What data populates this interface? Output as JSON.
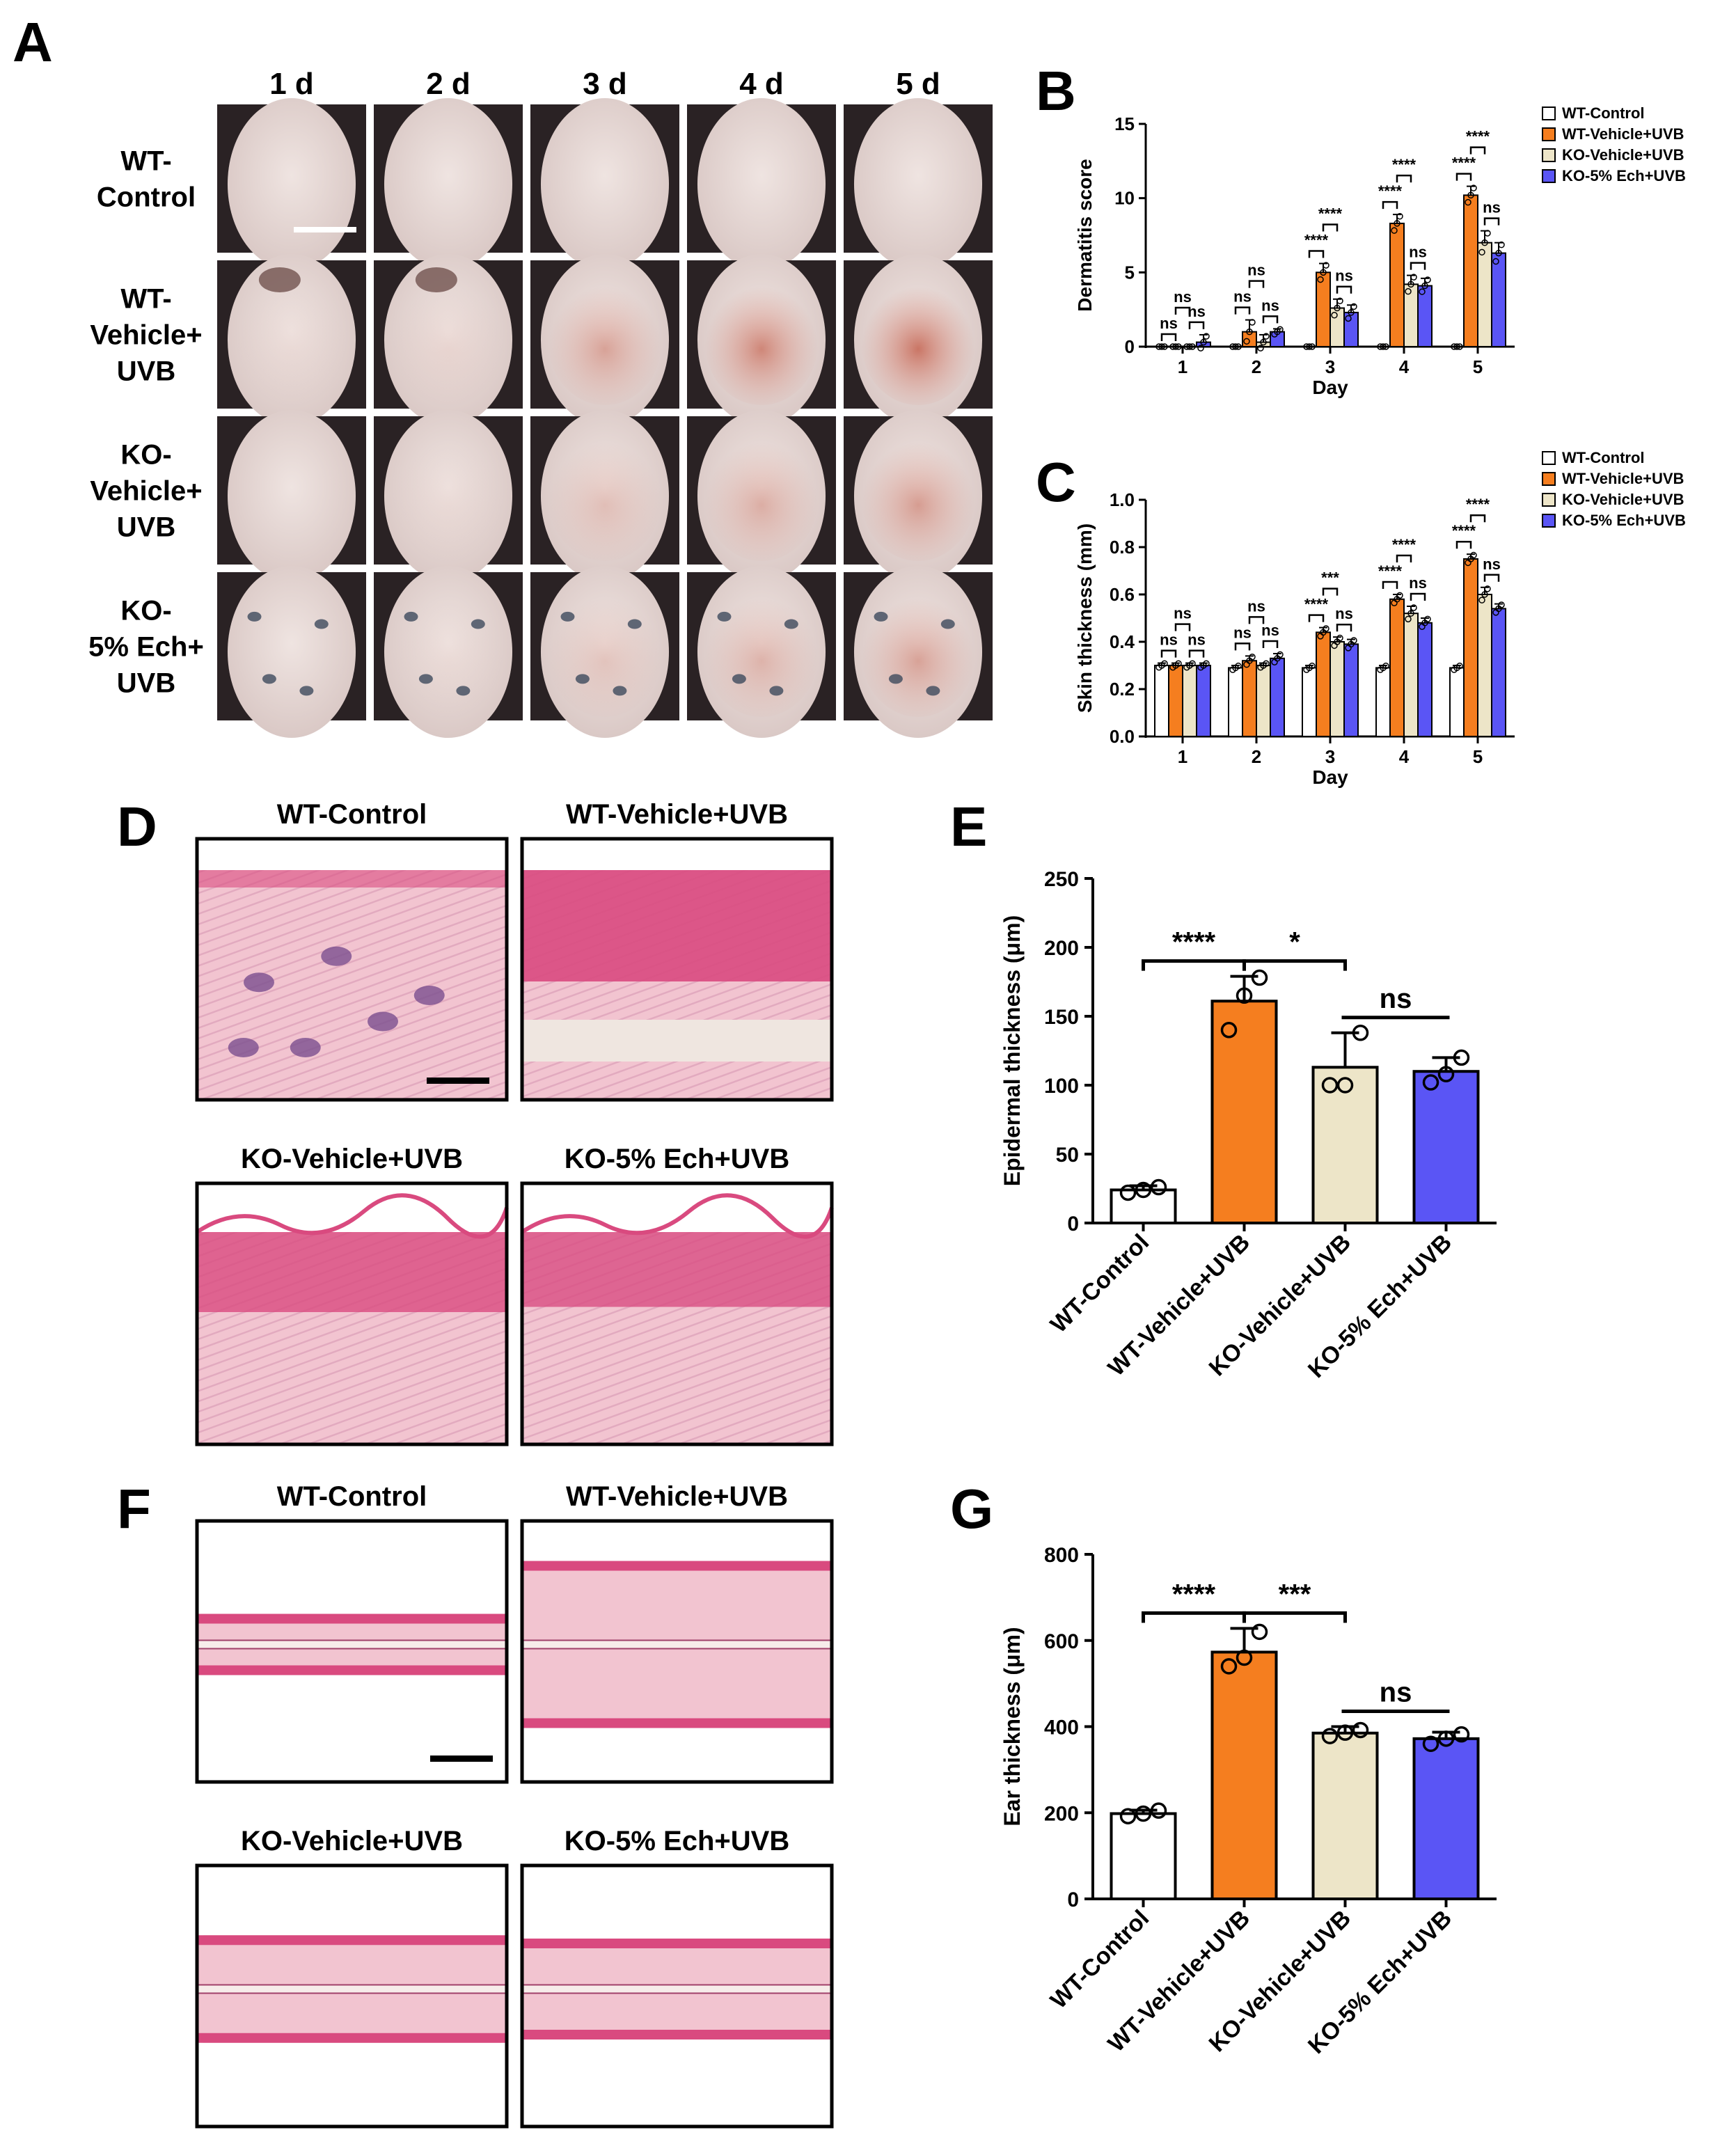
{
  "panel_labels": {
    "A": "A",
    "B": "B",
    "C": "C",
    "D": "D",
    "E": "E",
    "F": "F",
    "G": "G"
  },
  "panel_A": {
    "column_headers": [
      "1 d",
      "2 d",
      "3 d",
      "4 d",
      "5 d"
    ],
    "row_labels": [
      [
        "WT-",
        "Control"
      ],
      [
        "WT-",
        "Vehicle+",
        "UVB"
      ],
      [
        "KO-",
        "Vehicle+",
        "UVB"
      ],
      [
        "KO-",
        "5% Ech+",
        "UVB"
      ]
    ],
    "erythema_level": [
      [
        0,
        0,
        0,
        0,
        0
      ],
      [
        0.05,
        0.1,
        0.55,
        0.8,
        0.95
      ],
      [
        0,
        0.05,
        0.3,
        0.45,
        0.6
      ],
      [
        0,
        0.05,
        0.25,
        0.4,
        0.55
      ]
    ],
    "colors": {
      "skin": "#e6d9d6",
      "fur": "#2a2224",
      "redness": "#c8705f",
      "tattoo": "#3d4a5c"
    }
  },
  "histology": {
    "panel_D": {
      "titles": [
        "WT-Control",
        "WT-Vehicle+UVB",
        "KO-Vehicle+UVB",
        "KO-5% Ech+UVB"
      ],
      "epidermis_level": [
        0.1,
        1.0,
        0.7,
        0.65
      ]
    },
    "panel_F": {
      "titles": [
        "WT-Control",
        "WT-Vehicle+UVB",
        "KO-Vehicle+UVB",
        "KO-5% Ech+UVB"
      ],
      "tissue_level": [
        0.2,
        1.0,
        0.55,
        0.5
      ]
    },
    "colors": {
      "pink": "#f2c4d0",
      "magenta": "#d94a7f",
      "purple": "#7a4f8f"
    }
  },
  "chart_data": [
    {
      "panel": "B",
      "type": "bar",
      "ylabel": "Dermatitis score",
      "xlabel": "Day",
      "ylim": [
        0,
        15
      ],
      "yticks": [
        0,
        5,
        10,
        15
      ],
      "categories": [
        "1",
        "2",
        "3",
        "4",
        "5"
      ],
      "legend_position": "top-right",
      "series": [
        {
          "name": "WT-Control",
          "color": "#ffffff",
          "values": [
            0,
            0,
            0,
            0,
            0
          ],
          "errors": [
            0,
            0,
            0,
            0,
            0
          ]
        },
        {
          "name": "WT-Vehicle+UVB",
          "color": "#f57e1f",
          "values": [
            0,
            1,
            5,
            8.3,
            10.2
          ],
          "errors": [
            0,
            0.8,
            0.6,
            0.6,
            0.6
          ]
        },
        {
          "name": "KO-Vehicle+UVB",
          "color": "#ede5c8",
          "values": [
            0,
            0.3,
            2.6,
            4.2,
            7
          ],
          "errors": [
            0,
            0.5,
            0.6,
            0.6,
            0.8
          ]
        },
        {
          "name": "KO-5% Ech+UVB",
          "color": "#5a55f5",
          "values": [
            0.3,
            1,
            2.3,
            4.1,
            6.3
          ],
          "errors": [
            0.5,
            0.2,
            0.5,
            0.5,
            0.7
          ]
        }
      ],
      "annotations": [
        {
          "day": 1,
          "brackets": [
            [
              0,
              1,
              "ns"
            ],
            [
              1,
              2,
              "ns"
            ],
            [
              2,
              3,
              "ns"
            ]
          ]
        },
        {
          "day": 2,
          "brackets": [
            [
              0,
              1,
              "ns"
            ],
            [
              1,
              2,
              "ns"
            ],
            [
              2,
              3,
              "ns"
            ]
          ]
        },
        {
          "day": 3,
          "brackets": [
            [
              0,
              1,
              "****"
            ],
            [
              1,
              2,
              "****"
            ],
            [
              2,
              3,
              "ns"
            ]
          ]
        },
        {
          "day": 4,
          "brackets": [
            [
              0,
              1,
              "****"
            ],
            [
              1,
              2,
              "****"
            ],
            [
              2,
              3,
              "ns"
            ]
          ]
        },
        {
          "day": 5,
          "brackets": [
            [
              0,
              1,
              "****"
            ],
            [
              1,
              2,
              "****"
            ],
            [
              2,
              3,
              "ns"
            ]
          ]
        }
      ]
    },
    {
      "panel": "C",
      "type": "bar",
      "ylabel": "Skin thickness (mm)",
      "xlabel": "Day",
      "ylim": [
        0,
        1.0
      ],
      "yticks": [
        0.0,
        0.2,
        0.4,
        0.6,
        0.8,
        1.0
      ],
      "categories": [
        "1",
        "2",
        "3",
        "4",
        "5"
      ],
      "legend_position": "top-right",
      "series": [
        {
          "name": "WT-Control",
          "color": "#ffffff",
          "values": [
            0.3,
            0.29,
            0.29,
            0.29,
            0.29
          ],
          "errors": [
            0.01,
            0.01,
            0.01,
            0.01,
            0.01
          ]
        },
        {
          "name": "WT-Vehicle+UVB",
          "color": "#f57e1f",
          "values": [
            0.3,
            0.32,
            0.44,
            0.58,
            0.75
          ],
          "errors": [
            0.01,
            0.02,
            0.02,
            0.02,
            0.02
          ]
        },
        {
          "name": "KO-Vehicle+UVB",
          "color": "#ede5c8",
          "values": [
            0.3,
            0.3,
            0.4,
            0.52,
            0.6
          ],
          "errors": [
            0.01,
            0.01,
            0.02,
            0.03,
            0.03
          ]
        },
        {
          "name": "KO-5% Ech+UVB",
          "color": "#5a55f5",
          "values": [
            0.3,
            0.33,
            0.39,
            0.48,
            0.54
          ],
          "errors": [
            0.01,
            0.02,
            0.02,
            0.02,
            0.02
          ]
        }
      ],
      "annotations": [
        {
          "day": 1,
          "brackets": [
            [
              0,
              1,
              "ns"
            ],
            [
              1,
              2,
              "ns"
            ],
            [
              2,
              3,
              "ns"
            ]
          ]
        },
        {
          "day": 2,
          "brackets": [
            [
              0,
              1,
              "ns"
            ],
            [
              1,
              2,
              "ns"
            ],
            [
              2,
              3,
              "ns"
            ]
          ]
        },
        {
          "day": 3,
          "brackets": [
            [
              0,
              1,
              "****"
            ],
            [
              1,
              2,
              "***"
            ],
            [
              2,
              3,
              "ns"
            ]
          ]
        },
        {
          "day": 4,
          "brackets": [
            [
              0,
              1,
              "****"
            ],
            [
              1,
              2,
              "****"
            ],
            [
              2,
              3,
              "ns"
            ]
          ]
        },
        {
          "day": 5,
          "brackets": [
            [
              0,
              1,
              "****"
            ],
            [
              1,
              2,
              "****"
            ],
            [
              2,
              3,
              "ns"
            ]
          ]
        }
      ]
    },
    {
      "panel": "E",
      "type": "bar",
      "ylabel": "Epidermal thickness (μm)",
      "ylim": [
        0,
        250
      ],
      "yticks": [
        0,
        50,
        100,
        150,
        200,
        250
      ],
      "categories": [
        "WT-Control",
        "WT-Vehicle+UVB",
        "KO-Vehicle+UVB",
        "KO-5% Ech+UVB"
      ],
      "colors": [
        "#ffffff",
        "#f57e1f",
        "#ede5c8",
        "#5a55f5"
      ],
      "values": [
        24,
        161,
        113,
        110
      ],
      "errors": [
        3,
        18,
        25,
        10
      ],
      "points": [
        [
          22,
          24,
          26
        ],
        [
          140,
          165,
          178
        ],
        [
          100,
          100,
          138
        ],
        [
          102,
          108,
          120
        ]
      ],
      "significance": [
        {
          "from": 0,
          "to": 1,
          "label": "****"
        },
        {
          "from": 1,
          "to": 2,
          "label": "*"
        },
        {
          "from": 2,
          "to": 3,
          "label": "ns"
        }
      ]
    },
    {
      "panel": "G",
      "type": "bar",
      "ylabel": "Ear thickness (μm)",
      "ylim": [
        0,
        800
      ],
      "yticks": [
        0,
        200,
        400,
        600,
        800
      ],
      "categories": [
        "WT-Control",
        "WT-Vehicle+UVB",
        "KO-Vehicle+UVB",
        "KO-5% Ech+UVB"
      ],
      "colors": [
        "#ffffff",
        "#f57e1f",
        "#ede5c8",
        "#5a55f5"
      ],
      "values": [
        198,
        573,
        385,
        372
      ],
      "errors": [
        8,
        55,
        15,
        15
      ],
      "points": [
        [
          192,
          198,
          205
        ],
        [
          540,
          560,
          620
        ],
        [
          378,
          386,
          392
        ],
        [
          360,
          372,
          382
        ]
      ],
      "significance": [
        {
          "from": 0,
          "to": 1,
          "label": "****"
        },
        {
          "from": 1,
          "to": 2,
          "label": "***"
        },
        {
          "from": 2,
          "to": 3,
          "label": "ns"
        }
      ]
    }
  ]
}
